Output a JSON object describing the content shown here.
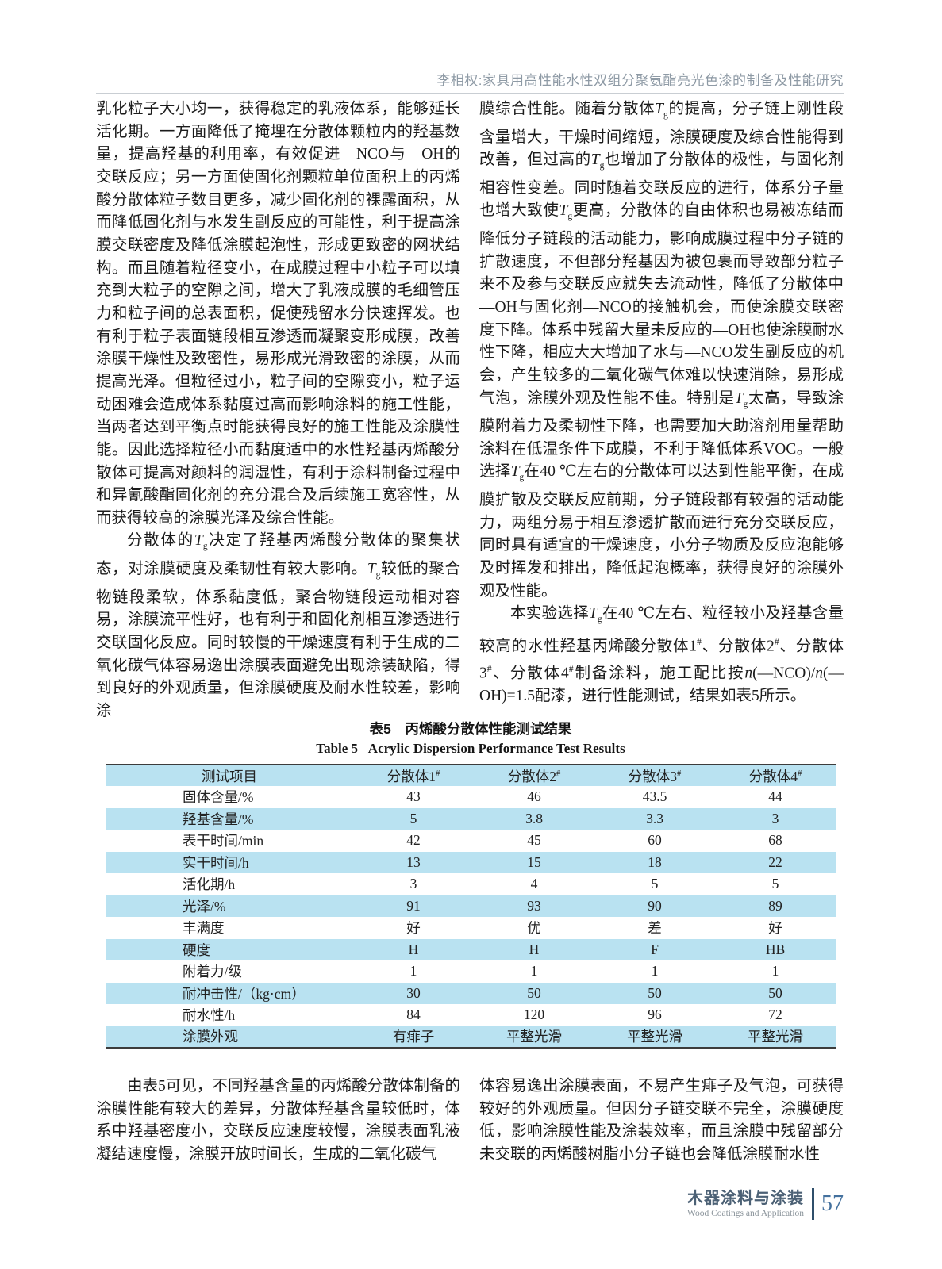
{
  "header": {
    "running_title": "李相权:家具用高性能水性双组分聚氨酯亮光色漆的制备及性能研究"
  },
  "body": {
    "left": [
      "乳化粒子大小均一，获得稳定的乳液体系，能够延长活化期。一方面降低了掩埋在分散体颗粒内的羟基数量，提高羟基的利用率，有效促进—NCO与—OH的交联反应；另一方面使固化剂颗粒单位面积上的丙烯酸分散体粒子数目更多，减少固化剂的裸露面积，从而降低固化剂与水发生副反应的可能性，利于提高涂膜交联密度及降低涂膜起泡性，形成更致密的网状结构。而且随着粒径变小，在成膜过程中小粒子可以填充到大粒子的空隙之间，增大了乳液成膜的毛细管压力和粒子间的总表面积，促使残留水分快速挥发。也有利于粒子表面链段相互渗透而凝聚变形成膜，改善涂膜干燥性及致密性，易形成光滑致密的涂膜，从而提高光泽。但粒径过小，粒子间的空隙变小，粒子运动困难会造成体系黏度过高而影响涂料的施工性能，当两者达到平衡点时能获得良好的施工性能及涂膜性能。因此选择粒径小而黏度适中的水性羟基丙烯酸分散体可提高对颜料的润湿性，有利于涂料制备过程中和异氰酸酯固化剂的充分混合及后续施工宽容性，从而获得较高的涂膜光泽及综合性能。",
      "分散体的<i>T</i><sub>g</sub>决定了羟基丙烯酸分散体的聚集状态，对涂膜硬度及柔韧性有较大影响。<i>T</i><sub>g</sub>较低的聚合物链段柔软，体系黏度低，聚合物链段运动相对容易，涂膜流平性好，也有利于和固化剂相互渗透进行交联固化反应。同时较慢的干燥速度有利于生成的二氧化碳气体容易逸出涂膜表面避免出现涂装缺陷，得到良好的外观质量，但涂膜硬度及耐水性较差，影响涂"
    ],
    "right": [
      "膜综合性能。随着分散体<i>T</i><sub>g</sub>的提高，分子链上刚性段含量增大，干燥时间缩短，涂膜硬度及综合性能得到改善，但过高的<i>T</i><sub>g</sub>也增加了分散体的极性，与固化剂相容性变差。同时随着交联反应的进行，体系分子量也增大致使<i>T</i><sub>g</sub>更高，分散体的自由体积也易被冻结而降低分子链段的活动能力，影响成膜过程中分子链的扩散速度，不但部分羟基因为被包裹而导致部分粒子来不及参与交联反应就失去流动性，降低了分散体中—OH与固化剂—NCO的接触机会，而使涂膜交联密度下降。体系中残留大量未反应的—OH也使涂膜耐水性下降，相应大大增加了水与—NCO发生副反应的机会，产生较多的二氧化碳气体难以快速消除，易形成气泡，涂膜外观及性能不佳。特别是<i>T</i><sub>g</sub>太高，导致涂膜附着力及柔韧性下降，也需要加大助溶剂用量帮助涂料在低温条件下成膜，不利于降低体系VOC。一般选择<i>T</i><sub>g</sub>在40 ℃左右的分散体可以达到性能平衡，在成膜扩散及交联反应前期，分子链段都有较强的活动能力，两组分易于相互渗透扩散而进行充分交联反应，同时具有适宜的干燥速度，小分子物质及反应泡能够及时挥发和排出，降低起泡概率，获得良好的涂膜外观及性能。",
      "本实验选择<i>T</i><sub>g</sub>在40 ℃左右、粒径较小及羟基含量较高的水性羟基丙烯酸分散体1<sup>#</sup>、分散体2<sup>#</sup>、分散体3<sup>#</sup>、分散体4<sup>#</sup>制备涂料，施工配比按<i>n</i>(—NCO)/<i>n</i>(—OH)=1.5配漆，进行性能测试，结果如表5所示。"
    ],
    "bottom_left": "由表5可见，不同羟基含量的丙烯酸分散体制备的涂膜性能有较大的差异，分散体羟基含量较低时，体系中羟基密度小，交联反应速度较慢，涂膜表面乳液凝结速度慢，涂膜开放时间长，生成的二氧化碳气",
    "bottom_right": "体容易逸出涂膜表面，不易产生痱子及气泡，可获得较好的外观质量。但因分子链交联不完全，涂膜硬度低，影响涂膜性能及涂装效率，而且涂膜中残留部分未交联的丙烯酸树脂小分子链也会降低涂膜耐水性"
  },
  "table": {
    "caption_zh": "表5　丙烯酸分散体性能测试结果",
    "caption_en": "Table 5&nbsp;&nbsp;&nbsp;Acrylic Dispersion Performance Test Results",
    "headers": [
      "测试项目",
      "分散体1<sup>#</sup>",
      "分散体2<sup>#</sup>",
      "分散体3<sup>#</sup>",
      "分散体4<sup>#</sup>"
    ],
    "rows": [
      {
        "label": "固体含量/%",
        "values": [
          "43",
          "46",
          "43.5",
          "44"
        ]
      },
      {
        "label": "羟基含量/%",
        "values": [
          "5",
          "3.8",
          "3.3",
          "3"
        ]
      },
      {
        "label": "表干时间/min",
        "values": [
          "42",
          "45",
          "60",
          "68"
        ]
      },
      {
        "label": "实干时间/h",
        "values": [
          "13",
          "15",
          "18",
          "22"
        ]
      },
      {
        "label": "活化期/h",
        "values": [
          "3",
          "4",
          "5",
          "5"
        ]
      },
      {
        "label": "光泽/%",
        "values": [
          "91",
          "93",
          "90",
          "89"
        ]
      },
      {
        "label": "丰满度",
        "values": [
          "好",
          "优",
          "差",
          "好"
        ]
      },
      {
        "label": "硬度",
        "values": [
          "H",
          "H",
          "F",
          "HB"
        ]
      },
      {
        "label": "附着力/级",
        "values": [
          "1",
          "1",
          "1",
          "1"
        ]
      },
      {
        "label": "耐冲击性/（kg·cm）",
        "values": [
          "30",
          "50",
          "50",
          "50"
        ]
      },
      {
        "label": "耐水性/h",
        "values": [
          "84",
          "120",
          "96",
          "72"
        ]
      },
      {
        "label": "涂膜外观",
        "values": [
          "有痱子",
          "平整光滑",
          "平整光滑",
          "平整光滑"
        ]
      }
    ]
  },
  "footer": {
    "journal_zh": "木器涂料与涂装",
    "journal_en": "Wood Coatings and Application",
    "page_number": "57"
  },
  "colors": {
    "table_stripe": "#b9e2f1",
    "table_border": "#3c3c3c",
    "running_head": "#8e9aa5",
    "footer_accent": "#2f4f6b",
    "page_number_blue": "#44719e"
  }
}
